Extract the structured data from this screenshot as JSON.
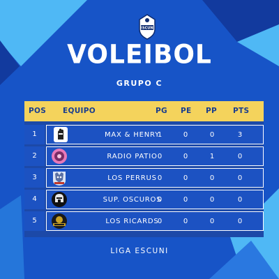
{
  "title": "VOLEIBOL",
  "subtitle": "GRUPO C",
  "logo": {
    "text": "ESCUNI",
    "icon": "shield-crest-icon"
  },
  "table": {
    "headers": [
      "POS",
      "EQUIPO",
      "PG",
      "PE",
      "PP",
      "PTS"
    ],
    "rows": [
      {
        "pos": "1",
        "team": "MAX & HENRY",
        "pg": "1",
        "pe": "0",
        "pp": "0",
        "pts": "3",
        "badge": "glove-badge-icon"
      },
      {
        "pos": "2",
        "team": "RADIO PATIO",
        "pg": "0",
        "pe": "0",
        "pp": "1",
        "pts": "0",
        "badge": "pink-ball-badge-icon"
      },
      {
        "pos": "3",
        "team": "LOS PERRUS",
        "pg": "0",
        "pe": "0",
        "pp": "0",
        "pts": "0",
        "badge": "dog-badge-icon"
      },
      {
        "pos": "4",
        "team": "SUP. OSCUROS",
        "pg": "0",
        "pe": "0",
        "pp": "0",
        "pts": "0",
        "badge": "dark-helmet-badge-icon"
      },
      {
        "pos": "5",
        "team": "LOS RICARDS",
        "pg": "0",
        "pe": "0",
        "pp": "0",
        "pts": "0",
        "badge": "ricards-badge-icon"
      }
    ]
  },
  "footer": "LIGA ESCUNI",
  "colors": {
    "background": "#1754c7",
    "header": "#f4d35c",
    "accent_light": "#4fb8f5",
    "accent_dark": "#123a9e"
  }
}
